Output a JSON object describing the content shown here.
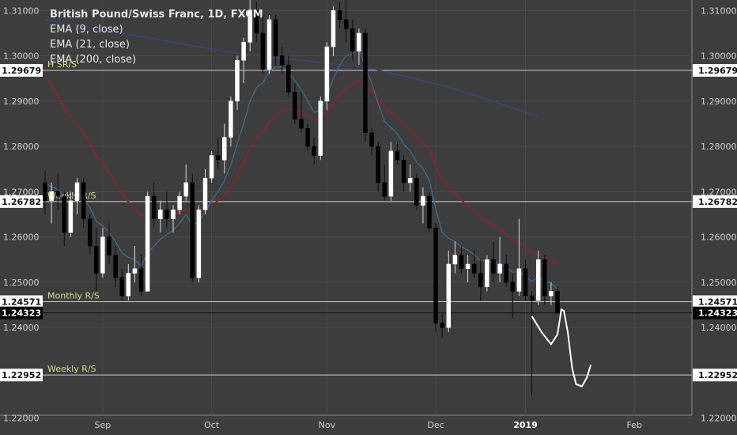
{
  "legend": {
    "title": "British Pound/Swiss Franc, 1D, FXCM",
    "ema9": "EMA (9, close)",
    "ema21": "EMA (21, close)",
    "ema200": "EMA (200, close)"
  },
  "chart_data": {
    "type": "candlestick",
    "title": "British Pound/Swiss Franc, 1D, FXCM",
    "ylim": [
      1.2175,
      1.3125
    ],
    "y_ticks": [
      "1.31000",
      "1.30000",
      "1.29000",
      "1.28000",
      "1.27000",
      "1.26000",
      "1.25000",
      "1.24000",
      "1.22000"
    ],
    "y_tick_values": [
      1.31,
      1.3,
      1.29,
      1.28,
      1.27,
      1.26,
      1.25,
      1.24,
      1.22
    ],
    "x_ticks": [
      {
        "label": "Sep",
        "index": 9,
        "bold": false
      },
      {
        "label": "Oct",
        "index": 26,
        "bold": false
      },
      {
        "label": "Nov",
        "index": 44,
        "bold": false
      },
      {
        "label": "Dec",
        "index": 61,
        "bold": false
      },
      {
        "label": "2019",
        "index": 75,
        "bold": true
      },
      {
        "label": "Feb",
        "index": 92,
        "bold": false
      }
    ],
    "levels": [
      {
        "label": "1.29679",
        "value": 1.29679,
        "note": "H SR/S",
        "style": "white"
      },
      {
        "label": "1.26782",
        "value": 1.26782,
        "note": "Weekly R/S",
        "style": "white"
      },
      {
        "label": "1.24571",
        "value": 1.24571,
        "note": "Monthly R/S",
        "style": "white"
      },
      {
        "label": "1.24323",
        "value": 1.24323,
        "note": "",
        "style": "black"
      },
      {
        "label": "1.22952",
        "value": 1.22952,
        "note": "Weekly R/S",
        "style": "white"
      }
    ],
    "candles": [
      {
        "o": 1.272,
        "h": 1.2745,
        "l": 1.265,
        "c": 1.268
      },
      {
        "o": 1.268,
        "h": 1.272,
        "l": 1.263,
        "c": 1.27
      },
      {
        "o": 1.27,
        "h": 1.274,
        "l": 1.266,
        "c": 1.269
      },
      {
        "o": 1.269,
        "h": 1.27,
        "l": 1.258,
        "c": 1.261
      },
      {
        "o": 1.261,
        "h": 1.27,
        "l": 1.26,
        "c": 1.268
      },
      {
        "o": 1.268,
        "h": 1.273,
        "l": 1.265,
        "c": 1.272
      },
      {
        "o": 1.272,
        "h": 1.273,
        "l": 1.262,
        "c": 1.264
      },
      {
        "o": 1.264,
        "h": 1.265,
        "l": 1.256,
        "c": 1.258
      },
      {
        "o": 1.258,
        "h": 1.262,
        "l": 1.248,
        "c": 1.252
      },
      {
        "o": 1.252,
        "h": 1.262,
        "l": 1.251,
        "c": 1.26
      },
      {
        "o": 1.26,
        "h": 1.263,
        "l": 1.254,
        "c": 1.256
      },
      {
        "o": 1.256,
        "h": 1.258,
        "l": 1.249,
        "c": 1.251
      },
      {
        "o": 1.251,
        "h": 1.253,
        "l": 1.246,
        "c": 1.247
      },
      {
        "o": 1.247,
        "h": 1.254,
        "l": 1.246,
        "c": 1.252
      },
      {
        "o": 1.252,
        "h": 1.258,
        "l": 1.25,
        "c": 1.253
      },
      {
        "o": 1.253,
        "h": 1.256,
        "l": 1.247,
        "c": 1.248
      },
      {
        "o": 1.248,
        "h": 1.27,
        "l": 1.248,
        "c": 1.269
      },
      {
        "o": 1.269,
        "h": 1.272,
        "l": 1.262,
        "c": 1.264
      },
      {
        "o": 1.264,
        "h": 1.268,
        "l": 1.261,
        "c": 1.266
      },
      {
        "o": 1.266,
        "h": 1.27,
        "l": 1.262,
        "c": 1.264
      },
      {
        "o": 1.264,
        "h": 1.267,
        "l": 1.261,
        "c": 1.266
      },
      {
        "o": 1.266,
        "h": 1.27,
        "l": 1.265,
        "c": 1.269
      },
      {
        "o": 1.269,
        "h": 1.276,
        "l": 1.268,
        "c": 1.272
      },
      {
        "o": 1.272,
        "h": 1.274,
        "l": 1.25,
        "c": 1.251
      },
      {
        "o": 1.251,
        "h": 1.267,
        "l": 1.25,
        "c": 1.266
      },
      {
        "o": 1.266,
        "h": 1.275,
        "l": 1.265,
        "c": 1.273
      },
      {
        "o": 1.273,
        "h": 1.279,
        "l": 1.272,
        "c": 1.278
      },
      {
        "o": 1.278,
        "h": 1.282,
        "l": 1.275,
        "c": 1.277
      },
      {
        "o": 1.277,
        "h": 1.285,
        "l": 1.274,
        "c": 1.282
      },
      {
        "o": 1.282,
        "h": 1.291,
        "l": 1.28,
        "c": 1.29
      },
      {
        "o": 1.29,
        "h": 1.3,
        "l": 1.288,
        "c": 1.299
      },
      {
        "o": 1.299,
        "h": 1.304,
        "l": 1.294,
        "c": 1.303
      },
      {
        "o": 1.303,
        "h": 1.3125,
        "l": 1.301,
        "c": 1.31
      },
      {
        "o": 1.31,
        "h": 1.312,
        "l": 1.303,
        "c": 1.305
      },
      {
        "o": 1.305,
        "h": 1.309,
        "l": 1.296,
        "c": 1.297
      },
      {
        "o": 1.297,
        "h": 1.309,
        "l": 1.296,
        "c": 1.308
      },
      {
        "o": 1.308,
        "h": 1.309,
        "l": 1.298,
        "c": 1.3
      },
      {
        "o": 1.3,
        "h": 1.302,
        "l": 1.296,
        "c": 1.298
      },
      {
        "o": 1.298,
        "h": 1.3,
        "l": 1.291,
        "c": 1.292
      },
      {
        "o": 1.292,
        "h": 1.294,
        "l": 1.285,
        "c": 1.286
      },
      {
        "o": 1.286,
        "h": 1.292,
        "l": 1.283,
        "c": 1.284
      },
      {
        "o": 1.284,
        "h": 1.285,
        "l": 1.279,
        "c": 1.28
      },
      {
        "o": 1.28,
        "h": 1.282,
        "l": 1.276,
        "c": 1.278
      },
      {
        "o": 1.278,
        "h": 1.291,
        "l": 1.277,
        "c": 1.29
      },
      {
        "o": 1.29,
        "h": 1.303,
        "l": 1.288,
        "c": 1.302
      },
      {
        "o": 1.302,
        "h": 1.311,
        "l": 1.3,
        "c": 1.31
      },
      {
        "o": 1.31,
        "h": 1.312,
        "l": 1.306,
        "c": 1.308
      },
      {
        "o": 1.308,
        "h": 1.3125,
        "l": 1.303,
        "c": 1.306
      },
      {
        "o": 1.306,
        "h": 1.308,
        "l": 1.299,
        "c": 1.301
      },
      {
        "o": 1.301,
        "h": 1.306,
        "l": 1.298,
        "c": 1.305
      },
      {
        "o": 1.305,
        "h": 1.306,
        "l": 1.281,
        "c": 1.283
      },
      {
        "o": 1.283,
        "h": 1.284,
        "l": 1.278,
        "c": 1.28
      },
      {
        "o": 1.28,
        "h": 1.281,
        "l": 1.27,
        "c": 1.272
      },
      {
        "o": 1.272,
        "h": 1.276,
        "l": 1.268,
        "c": 1.269
      },
      {
        "o": 1.269,
        "h": 1.281,
        "l": 1.268,
        "c": 1.279
      },
      {
        "o": 1.279,
        "h": 1.281,
        "l": 1.276,
        "c": 1.277
      },
      {
        "o": 1.277,
        "h": 1.278,
        "l": 1.27,
        "c": 1.272
      },
      {
        "o": 1.272,
        "h": 1.276,
        "l": 1.27,
        "c": 1.273
      },
      {
        "o": 1.273,
        "h": 1.274,
        "l": 1.266,
        "c": 1.267
      },
      {
        "o": 1.267,
        "h": 1.271,
        "l": 1.263,
        "c": 1.269
      },
      {
        "o": 1.269,
        "h": 1.27,
        "l": 1.261,
        "c": 1.262
      },
      {
        "o": 1.262,
        "h": 1.263,
        "l": 1.239,
        "c": 1.241
      },
      {
        "o": 1.241,
        "h": 1.243,
        "l": 1.238,
        "c": 1.24
      },
      {
        "o": 1.24,
        "h": 1.257,
        "l": 1.239,
        "c": 1.254
      },
      {
        "o": 1.254,
        "h": 1.259,
        "l": 1.252,
        "c": 1.256
      },
      {
        "o": 1.256,
        "h": 1.258,
        "l": 1.252,
        "c": 1.253
      },
      {
        "o": 1.253,
        "h": 1.256,
        "l": 1.25,
        "c": 1.254
      },
      {
        "o": 1.254,
        "h": 1.257,
        "l": 1.251,
        "c": 1.252
      },
      {
        "o": 1.252,
        "h": 1.255,
        "l": 1.246,
        "c": 1.249
      },
      {
        "o": 1.249,
        "h": 1.256,
        "l": 1.248,
        "c": 1.255
      },
      {
        "o": 1.255,
        "h": 1.259,
        "l": 1.25,
        "c": 1.252
      },
      {
        "o": 1.252,
        "h": 1.26,
        "l": 1.25,
        "c": 1.254
      },
      {
        "o": 1.254,
        "h": 1.256,
        "l": 1.249,
        "c": 1.25
      },
      {
        "o": 1.25,
        "h": 1.252,
        "l": 1.242,
        "c": 1.248
      },
      {
        "o": 1.248,
        "h": 1.264,
        "l": 1.247,
        "c": 1.253
      },
      {
        "o": 1.253,
        "h": 1.255,
        "l": 1.246,
        "c": 1.247
      },
      {
        "o": 1.247,
        "h": 1.248,
        "l": 1.225,
        "c": 1.246
      },
      {
        "o": 1.246,
        "h": 1.257,
        "l": 1.245,
        "c": 1.255
      },
      {
        "o": 1.255,
        "h": 1.256,
        "l": 1.245,
        "c": 1.247
      },
      {
        "o": 1.247,
        "h": 1.25,
        "l": 1.245,
        "c": 1.248
      },
      {
        "o": 1.248,
        "h": 1.249,
        "l": 1.243,
        "c": 1.2432
      }
    ],
    "ema9": [
      1.272,
      1.271,
      1.2705,
      1.269,
      1.2688,
      1.2695,
      1.2685,
      1.2665,
      1.2635,
      1.2625,
      1.261,
      1.259,
      1.2565,
      1.2555,
      1.255,
      1.2535,
      1.2565,
      1.258,
      1.2595,
      1.2605,
      1.2615,
      1.263,
      1.265,
      1.2625,
      1.2635,
      1.2655,
      1.268,
      1.27,
      1.2725,
      1.276,
      1.2805,
      1.285,
      1.29,
      1.293,
      1.294,
      1.2965,
      1.2975,
      1.2975,
      1.2965,
      1.2945,
      1.2925,
      1.29,
      1.2875,
      1.288,
      1.291,
      1.295,
      1.298,
      1.3,
      1.3005,
      1.3015,
      1.2975,
      1.294,
      1.2895,
      1.2855,
      1.2842,
      1.2828,
      1.2805,
      1.279,
      1.2766,
      1.2751,
      1.2725,
      1.2662,
      1.261,
      1.2597,
      1.259,
      1.2578,
      1.2571,
      1.2561,
      1.2547,
      1.2548,
      1.2543,
      1.2542,
      1.2533,
      1.2522,
      1.2524,
      1.2513,
      1.2502,
      1.2511,
      1.2503,
      1.2498,
      1.2485
    ],
    "ema21": [
      1.296,
      1.2935,
      1.2912,
      1.2885,
      1.2865,
      1.2848,
      1.283,
      1.2808,
      1.278,
      1.2762,
      1.2742,
      1.272,
      1.2695,
      1.2678,
      1.2664,
      1.2648,
      1.2652,
      1.2651,
      1.2652,
      1.265,
      1.2651,
      1.2654,
      1.2661,
      1.2648,
      1.265,
      1.2659,
      1.267,
      1.268,
      1.2692,
      1.2712,
      1.2737,
      1.2765,
      1.2795,
      1.2818,
      1.2832,
      1.2855,
      1.2868,
      1.2879,
      1.2882,
      1.288,
      1.2876,
      1.2869,
      1.2861,
      1.2864,
      1.2878,
      1.2898,
      1.2915,
      1.2929,
      1.2937,
      1.2947,
      1.2936,
      1.2923,
      1.2905,
      1.2886,
      1.2876,
      1.2864,
      1.2849,
      1.2838,
      1.2822,
      1.281,
      1.2793,
      1.2758,
      1.2726,
      1.271,
      1.2696,
      1.2681,
      1.267,
      1.2657,
      1.2643,
      1.2635,
      1.2625,
      1.2617,
      1.2606,
      1.2594,
      1.2588,
      1.2577,
      1.2566,
      1.2563,
      1.2555,
      1.2548,
      1.2538
    ],
    "ema200_pts": [
      [
        0,
        1.308
      ],
      [
        30,
        1.3005
      ],
      [
        50,
        1.2975
      ],
      [
        62,
        1.2935
      ],
      [
        70,
        1.29
      ],
      [
        77,
        1.2865
      ]
    ],
    "drawing_pts": [
      [
        76,
        1.2425
      ],
      [
        77.5,
        1.239
      ],
      [
        79,
        1.2363
      ],
      [
        80,
        1.2385
      ],
      [
        80.6,
        1.244
      ],
      [
        81,
        1.2437
      ],
      [
        81.6,
        1.239
      ],
      [
        82.3,
        1.231
      ],
      [
        82.9,
        1.2275
      ],
      [
        83.8,
        1.227
      ],
      [
        84.6,
        1.229
      ],
      [
        85.2,
        1.2318
      ]
    ]
  }
}
